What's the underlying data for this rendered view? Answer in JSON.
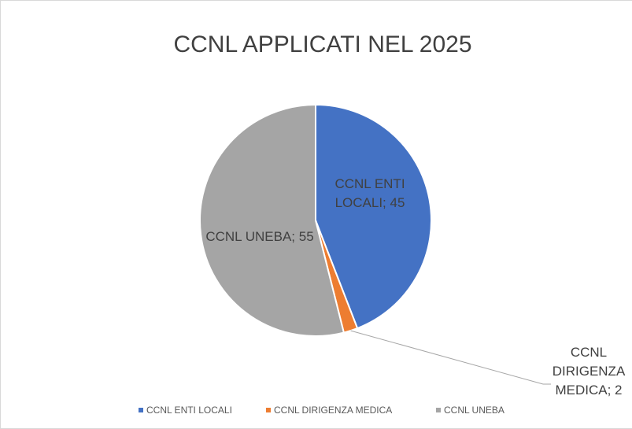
{
  "chart_data": {
    "type": "pie",
    "title": "CCNL APPLICATI NEL 2025",
    "categories": [
      "CCNL ENTI LOCALI",
      "CCNL DIRIGENZA MEDICA",
      "CCNL UNEBA"
    ],
    "values": [
      45,
      2,
      55
    ],
    "value_labels": [
      "CCNL ENTI LOCALI; 45",
      "CCNL DIRIGENZA MEDICA; 2",
      "CCNL UNEBA; 55"
    ],
    "colors": [
      "#4472c4",
      "#ed7d31",
      "#a5a5a5"
    ]
  }
}
